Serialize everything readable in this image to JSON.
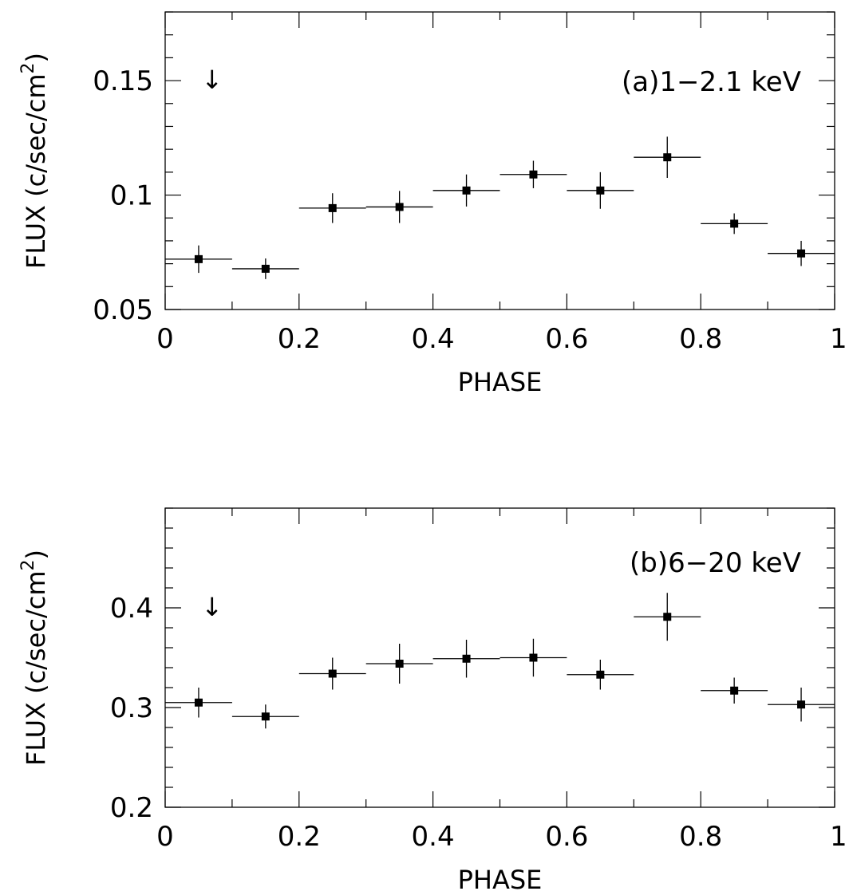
{
  "chart_data": [
    {
      "type": "scatter",
      "panel_label": "(a)1−2.1 keV",
      "xlabel": "PHASE",
      "ylabel_main": "FLUX (c/sec/cm",
      "ylabel_sup": "2",
      "ylabel_close": ")",
      "xlim": [
        0,
        1
      ],
      "ylim": [
        0.05,
        0.18
      ],
      "xticks": [
        0,
        0.2,
        0.4,
        0.6,
        0.8,
        1
      ],
      "xtick_labels": [
        "0",
        "0.2",
        "0.4",
        "0.6",
        "0.8",
        "1"
      ],
      "yticks": [
        0.05,
        0.1,
        0.15
      ],
      "ytick_labels": [
        "0.05",
        "0.1",
        "0.15"
      ],
      "arrow_symbol": "↓",
      "arrow_at": {
        "x": 0.07,
        "y": 0.15
      },
      "points": [
        {
          "x": 0.05,
          "xerr": 0.05,
          "y": 0.072,
          "yerr": 0.006
        },
        {
          "x": 0.15,
          "xerr": 0.05,
          "y": 0.0678,
          "yerr": 0.0045
        },
        {
          "x": 0.25,
          "xerr": 0.05,
          "y": 0.0943,
          "yerr": 0.0065
        },
        {
          "x": 0.35,
          "xerr": 0.05,
          "y": 0.0948,
          "yerr": 0.007
        },
        {
          "x": 0.45,
          "xerr": 0.05,
          "y": 0.102,
          "yerr": 0.007
        },
        {
          "x": 0.55,
          "xerr": 0.05,
          "y": 0.109,
          "yerr": 0.006
        },
        {
          "x": 0.65,
          "xerr": 0.05,
          "y": 0.102,
          "yerr": 0.008
        },
        {
          "x": 0.75,
          "xerr": 0.05,
          "y": 0.1165,
          "yerr": 0.009
        },
        {
          "x": 0.85,
          "xerr": 0.05,
          "y": 0.0875,
          "yerr": 0.0045
        },
        {
          "x": 0.95,
          "xerr": 0.05,
          "y": 0.0745,
          "yerr": 0.0055
        }
      ]
    },
    {
      "type": "scatter",
      "panel_label": "(b)6−20 keV",
      "xlabel": "PHASE",
      "ylabel_main": "FLUX (c/sec/cm",
      "ylabel_sup": "2",
      "ylabel_close": ")",
      "xlim": [
        0,
        1
      ],
      "ylim": [
        0.2,
        0.5
      ],
      "xticks": [
        0,
        0.2,
        0.4,
        0.6,
        0.8,
        1
      ],
      "xtick_labels": [
        "0",
        "0.2",
        "0.4",
        "0.6",
        "0.8",
        "1"
      ],
      "yticks": [
        0.2,
        0.3,
        0.4
      ],
      "ytick_labels": [
        "0.2",
        "0.3",
        "0.4"
      ],
      "arrow_symbol": "↓",
      "arrow_at": {
        "x": 0.07,
        "y": 0.4
      },
      "points": [
        {
          "x": 0.05,
          "xerr": 0.05,
          "y": 0.305,
          "yerr": 0.015
        },
        {
          "x": 0.15,
          "xerr": 0.05,
          "y": 0.291,
          "yerr": 0.012
        },
        {
          "x": 0.25,
          "xerr": 0.05,
          "y": 0.334,
          "yerr": 0.016
        },
        {
          "x": 0.35,
          "xerr": 0.05,
          "y": 0.344,
          "yerr": 0.02
        },
        {
          "x": 0.45,
          "xerr": 0.05,
          "y": 0.349,
          "yerr": 0.019
        },
        {
          "x": 0.55,
          "xerr": 0.05,
          "y": 0.35,
          "yerr": 0.019
        },
        {
          "x": 0.65,
          "xerr": 0.05,
          "y": 0.333,
          "yerr": 0.015
        },
        {
          "x": 0.75,
          "xerr": 0.05,
          "y": 0.391,
          "yerr": 0.024
        },
        {
          "x": 0.85,
          "xerr": 0.05,
          "y": 0.317,
          "yerr": 0.013
        },
        {
          "x": 0.95,
          "xerr": 0.05,
          "y": 0.303,
          "yerr": 0.017
        }
      ]
    }
  ]
}
